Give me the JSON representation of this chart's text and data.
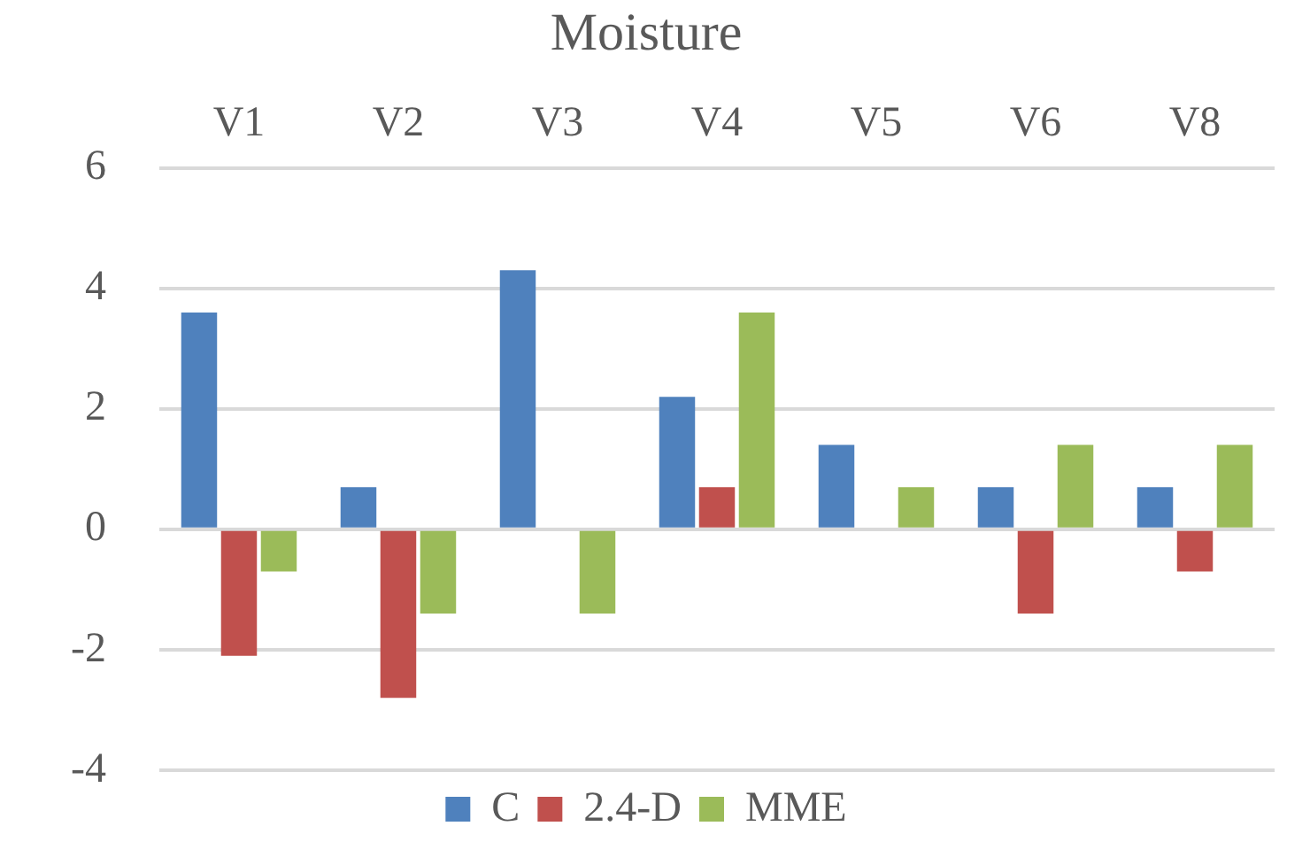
{
  "chart_data": {
    "type": "bar",
    "title": "Moisture",
    "categories": [
      "V1",
      "V2",
      "V3",
      "V4",
      "V5",
      "V6",
      "V8"
    ],
    "series": [
      {
        "name": "C",
        "color": "#4f81bd",
        "values": [
          3.6,
          0.7,
          4.3,
          2.2,
          1.4,
          0.7,
          0.7
        ]
      },
      {
        "name": "2.4-D",
        "color": "#c0504d",
        "values": [
          -2.1,
          -2.8,
          0,
          0.7,
          0,
          -1.4,
          -0.7
        ]
      },
      {
        "name": "MME",
        "color": "#9bbb59",
        "values": [
          -0.7,
          -1.4,
          -1.4,
          3.6,
          0.7,
          1.4,
          1.4
        ]
      }
    ],
    "ylim": [
      -4,
      6
    ],
    "yticks": [
      -4,
      -2,
      0,
      2,
      4,
      6
    ],
    "grid": "y",
    "legend": "bottom"
  }
}
